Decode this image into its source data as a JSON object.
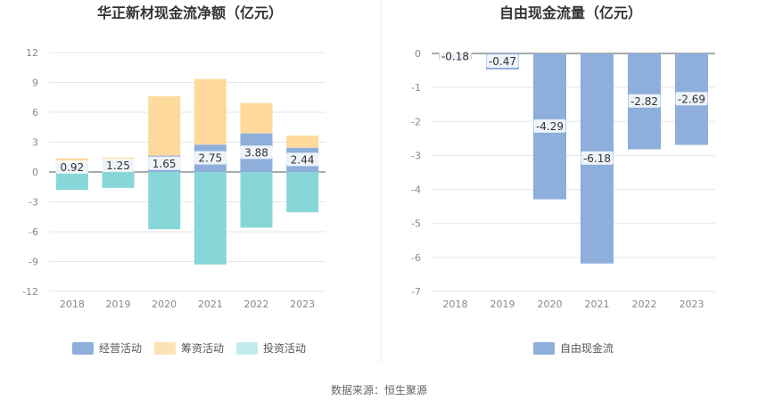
{
  "source_text": "数据来源：恒生聚源",
  "chart_data": [
    {
      "type": "bar",
      "stacked": true,
      "title": "华正新材现金流净额（亿元）",
      "categories": [
        "2018",
        "2019",
        "2020",
        "2021",
        "2022",
        "2023"
      ],
      "ylim": [
        -12,
        12
      ],
      "yticks": [
        12,
        9,
        6,
        3,
        0,
        -3,
        -6,
        -9,
        -12
      ],
      "series": [
        {
          "name": "经营活动",
          "color": "#8eaedc",
          "values": [
            0.92,
            1.25,
            1.65,
            2.75,
            3.88,
            2.44
          ],
          "labels": [
            "0.92",
            "1.25",
            "1.65",
            "2.75",
            "3.88",
            "2.44"
          ]
        },
        {
          "name": "筹资活动",
          "color": "#fdd99b",
          "values": [
            0.45,
            0.2,
            5.95,
            6.6,
            3.05,
            1.2
          ]
        },
        {
          "name": "投资活动",
          "color": "#88d7d8",
          "values": [
            -1.8,
            -1.6,
            -5.75,
            -9.3,
            -5.6,
            -4.05
          ]
        }
      ],
      "legend": [
        {
          "name": "经营活动",
          "color": "#8eaedc"
        },
        {
          "name": "筹资活动",
          "color": "#fde2b5"
        },
        {
          "name": "投资活动",
          "color": "#c3ebec"
        }
      ]
    },
    {
      "type": "bar",
      "title": "自由现金流量（亿元）",
      "categories": [
        "2018",
        "2019",
        "2020",
        "2021",
        "2022",
        "2023"
      ],
      "ylim": [
        -7,
        0
      ],
      "yticks": [
        0,
        -1,
        -2,
        -3,
        -4,
        -5,
        -6,
        -7
      ],
      "series": [
        {
          "name": "自由现金流",
          "color": "#8eaedc",
          "values": [
            -0.18,
            -0.47,
            -4.29,
            -6.18,
            -2.82,
            -2.69
          ],
          "labels": [
            "-0.18",
            "-0.47",
            "-4.29",
            "-6.18",
            "-2.82",
            "-2.69"
          ]
        }
      ],
      "legend": [
        {
          "name": "自由现金流",
          "color": "#8eaedc"
        }
      ]
    }
  ]
}
